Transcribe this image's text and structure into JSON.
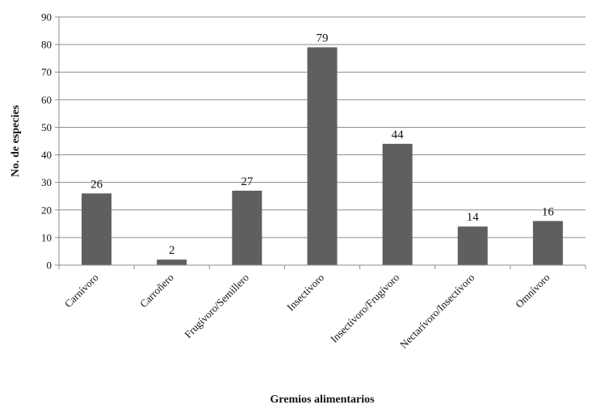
{
  "chart_data": {
    "type": "bar",
    "categories": [
      "Carnívoro",
      "Carroñero",
      "Frugívoro/Semillero",
      "Insectívoro",
      "Insectívoro/Frugívoro",
      "Nectarívoro/Insectívoro",
      "Omnívoro"
    ],
    "values": [
      26,
      2,
      27,
      79,
      44,
      14,
      16
    ],
    "data_labels": [
      "26",
      "2",
      "27",
      "79",
      "44",
      "14",
      "16"
    ],
    "title": "",
    "xlabel": "Gremios alimentarios",
    "ylabel": "No. de especies",
    "ylim": [
      0,
      90
    ],
    "yticks": [
      0,
      10,
      20,
      30,
      40,
      50,
      60,
      70,
      80,
      90
    ],
    "grid": true,
    "legend": "none",
    "bar_color": "#5f5f5f",
    "grid_color": "#8c8c8c"
  }
}
